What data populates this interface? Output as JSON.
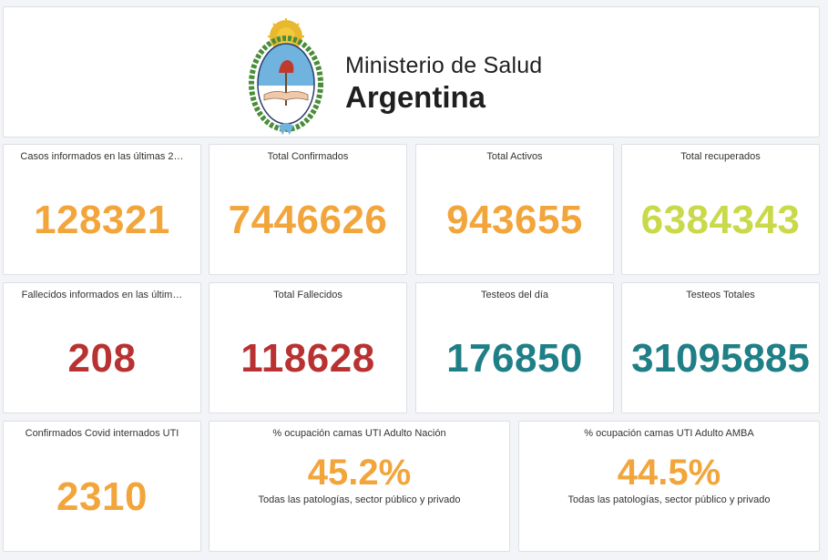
{
  "header": {
    "brand_line1": "Ministerio de Salud",
    "brand_line2": "Argentina",
    "emblem_icon": "argentina-coat-of-arms-icon"
  },
  "colors": {
    "orange": "#f2a53a",
    "lime": "#c9d94a",
    "red": "#b93232",
    "teal": "#1f7f86"
  },
  "row1": [
    {
      "title": "Casos informados en las últimas 2…",
      "value": "128321"
    },
    {
      "title": "Total Confirmados",
      "value": "7446626"
    },
    {
      "title": "Total Activos",
      "value": "943655"
    },
    {
      "title": "Total recuperados",
      "value": "6384343"
    }
  ],
  "row2": [
    {
      "title": "Fallecidos informados en las últim…",
      "value": "208"
    },
    {
      "title": "Total Fallecidos",
      "value": "118628"
    },
    {
      "title": "Testeos del día",
      "value": "176850"
    },
    {
      "title": "Testeos Totales",
      "value": "31095885"
    }
  ],
  "row3": [
    {
      "title": "Confirmados Covid internados UTI",
      "value": "2310"
    },
    {
      "title": "% ocupación camas UTI Adulto Nación",
      "value": "45.2%",
      "subtitle": "Todas las patologías, sector público y privado"
    },
    {
      "title": "% ocupación camas UTI Adulto AMBA",
      "value": "44.5%",
      "subtitle": "Todas las patologías, sector público y privado"
    }
  ]
}
